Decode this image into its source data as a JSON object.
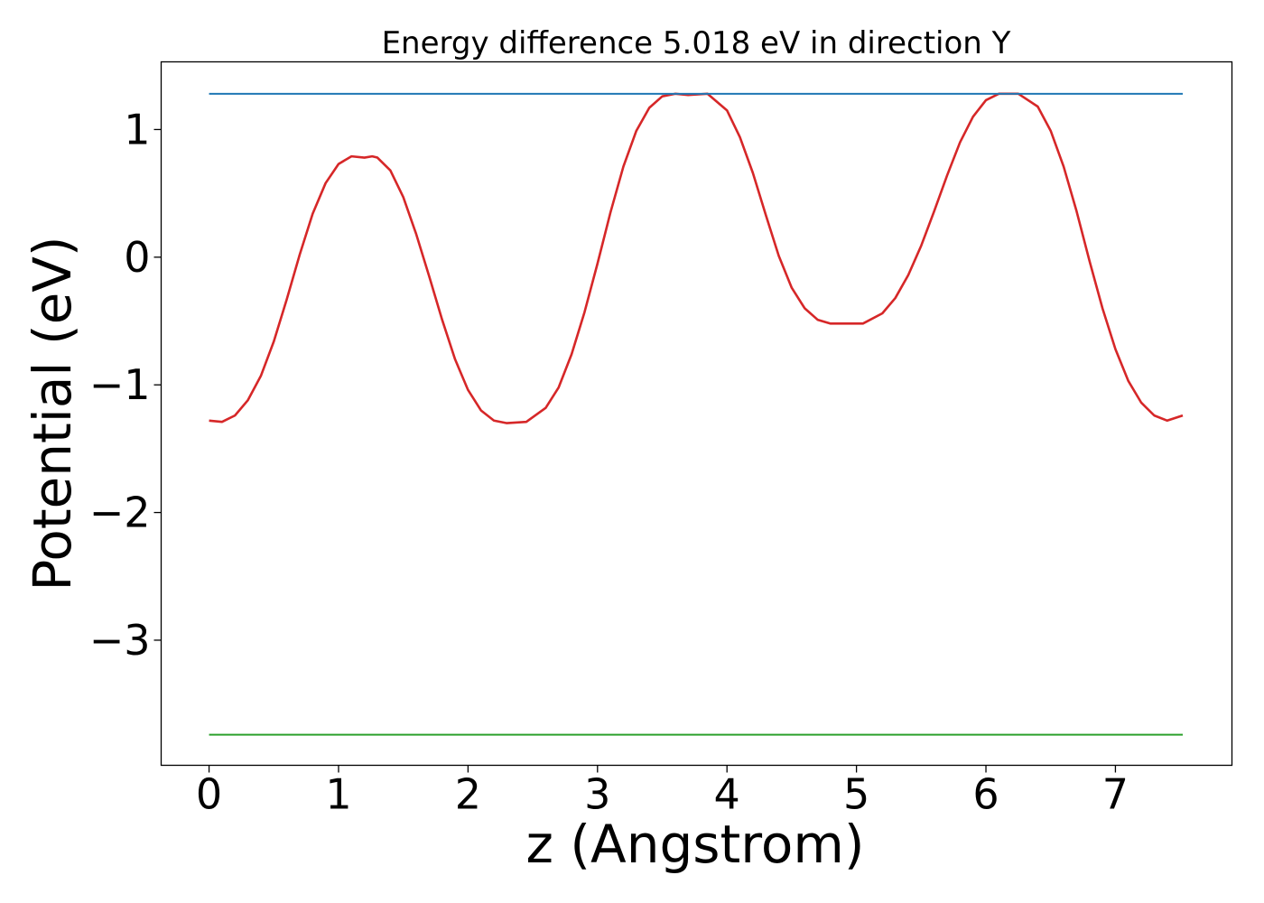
{
  "chart_data": {
    "type": "line",
    "title": "Energy difference 5.018 eV in direction Y",
    "xlabel": "z (Angstrom)",
    "ylabel": "Potential (eV)",
    "xlim": [
      -0.37,
      7.9
    ],
    "ylim": [
      -3.98,
      1.53
    ],
    "x_ticks": [
      0,
      1,
      2,
      3,
      4,
      5,
      6,
      7
    ],
    "x_tick_labels": [
      "0",
      "1",
      "2",
      "3",
      "4",
      "5",
      "6",
      "7"
    ],
    "y_ticks": [
      1,
      0,
      -1,
      -2,
      -3
    ],
    "y_tick_labels": [
      "1",
      "0",
      "−1",
      "−2",
      "−3"
    ],
    "grid": false,
    "legend": "none",
    "series": [
      {
        "color": "#d62728",
        "x": [
          0,
          0.1,
          0.2,
          0.3,
          0.4,
          0.5,
          0.6,
          0.7,
          0.8,
          0.9,
          1.0,
          1.1,
          1.2,
          1.26,
          1.3,
          1.4,
          1.5,
          1.6,
          1.7,
          1.8,
          1.9,
          2.0,
          2.1,
          2.2,
          2.3,
          2.45,
          2.6,
          2.7,
          2.8,
          2.9,
          3.0,
          3.1,
          3.2,
          3.3,
          3.4,
          3.5,
          3.6,
          3.7,
          3.85,
          4.0,
          4.1,
          4.2,
          4.3,
          4.4,
          4.5,
          4.6,
          4.7,
          4.8,
          4.9,
          5.05,
          5.2,
          5.3,
          5.4,
          5.5,
          5.6,
          5.7,
          5.8,
          5.9,
          6.0,
          6.1,
          6.25,
          6.4,
          6.5,
          6.6,
          6.7,
          6.8,
          6.9,
          7.0,
          7.1,
          7.2,
          7.3,
          7.4,
          7.52
        ],
        "y": [
          -1.28,
          -1.29,
          -1.24,
          -1.12,
          -0.93,
          -0.66,
          -0.33,
          0.02,
          0.34,
          0.58,
          0.73,
          0.79,
          0.78,
          0.79,
          0.78,
          0.68,
          0.47,
          0.18,
          -0.15,
          -0.49,
          -0.8,
          -1.04,
          -1.2,
          -1.28,
          -1.3,
          -1.29,
          -1.18,
          -1.02,
          -0.76,
          -0.43,
          -0.05,
          0.35,
          0.71,
          0.99,
          1.17,
          1.26,
          1.28,
          1.27,
          1.28,
          1.15,
          0.94,
          0.66,
          0.33,
          0.01,
          -0.24,
          -0.4,
          -0.49,
          -0.52,
          -0.52,
          -0.52,
          -0.44,
          -0.32,
          -0.14,
          0.09,
          0.36,
          0.64,
          0.9,
          1.1,
          1.23,
          1.28,
          1.28,
          1.18,
          0.99,
          0.71,
          0.36,
          -0.03,
          -0.4,
          -0.72,
          -0.97,
          -1.14,
          -1.24,
          -1.28,
          -1.24
        ]
      },
      {
        "color": "#1f77b4",
        "x": [
          0,
          7.52
        ],
        "y": [
          1.28,
          1.28
        ]
      },
      {
        "color": "#2ca02c",
        "x": [
          0,
          7.52
        ],
        "y": [
          -3.74,
          -3.74
        ]
      }
    ]
  }
}
